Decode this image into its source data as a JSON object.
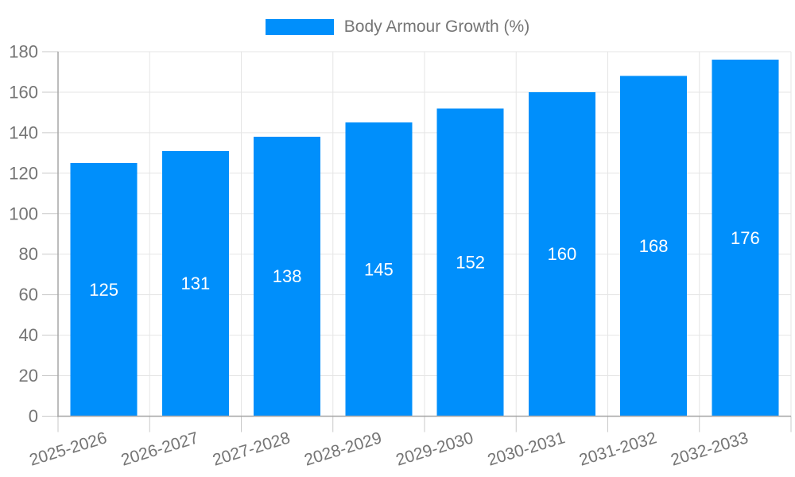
{
  "chart_data": {
    "type": "bar",
    "title": "Body Armour Growth (%)",
    "categories": [
      "2025-2026",
      "2026-2027",
      "2027-2028",
      "2028-2029",
      "2029-2030",
      "2030-2031",
      "2031-2032",
      "2032-2033"
    ],
    "values": [
      125,
      131,
      138,
      145,
      152,
      160,
      168,
      176
    ],
    "xlabel": "",
    "ylabel": "",
    "ylim": [
      0,
      180
    ],
    "y_ticks": [
      0,
      20,
      40,
      60,
      80,
      100,
      120,
      140,
      160,
      180
    ],
    "grid": true,
    "legend_position": "top",
    "colors": {
      "bar": "#008FFB",
      "bar_label": "#FFFFFF",
      "axis_line": "#A6A6A6",
      "gridline": "#E5E5E5",
      "tick": "#C9C9C9",
      "text": "#757575"
    }
  }
}
